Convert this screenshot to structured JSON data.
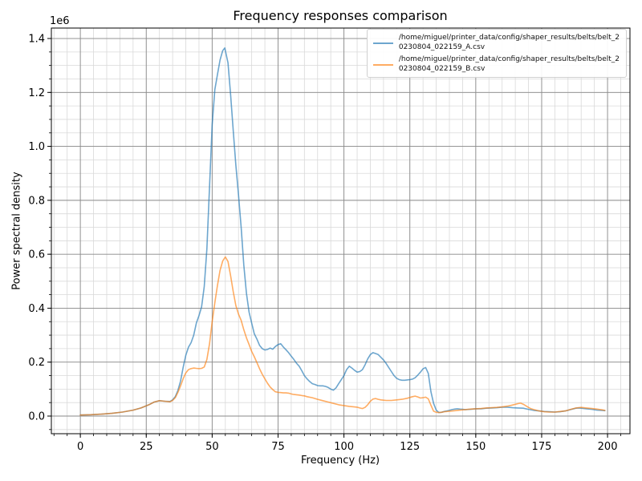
{
  "title": "Frequency responses comparison",
  "axes": {
    "xlabel": "Frequency (Hz)",
    "ylabel": "Power spectral density",
    "offset_text": "1e6"
  },
  "legend": {
    "position": "upper right",
    "items": [
      {
        "line1": "/home/miguel/printer_data/config/shaper_results/belts/belt_2",
        "line2": "0230804_022159_A.csv"
      },
      {
        "line1": "/home/miguel/printer_data/config/shaper_results/belts/belt_2",
        "line2": "0230804_022159_B.csv"
      }
    ]
  },
  "chart_data": {
    "type": "line",
    "title": "Frequency responses comparison",
    "xlabel": "Frequency (Hz)",
    "ylabel": "Power spectral density",
    "y_scale": "1e6",
    "xlim": [
      -11,
      208.5
    ],
    "ylim": [
      -0.0654,
      1.4387
    ],
    "x_ticks": [
      0,
      25,
      50,
      75,
      100,
      125,
      150,
      175,
      200
    ],
    "x_tick_labels": [
      "0",
      "25",
      "50",
      "75",
      "100",
      "125",
      "150",
      "175",
      "200"
    ],
    "y_ticks": [
      0,
      0.2,
      0.4,
      0.6,
      0.8,
      1.0,
      1.2,
      1.4
    ],
    "y_tick_labels": [
      "0.0",
      "0.2",
      "0.4",
      "0.6",
      "0.8",
      "1.0",
      "1.2",
      "1.4"
    ],
    "x_minor_step": 5,
    "y_minor_step": 0.05,
    "grid": "both",
    "grid_major_color": "#8a8a8a",
    "grid_minor_color": "#d9d9d9",
    "legend_position": "upper right",
    "series": [
      {
        "name": "/home/miguel/printer_data/config/shaper_results/belts/belt_20230804_022159_A.csv",
        "color": "#1f77b4",
        "opacity": 0.65,
        "points": [
          [
            0,
            0.004
          ],
          [
            4,
            0.005
          ],
          [
            8,
            0.007
          ],
          [
            12,
            0.01
          ],
          [
            16,
            0.015
          ],
          [
            20,
            0.022
          ],
          [
            23,
            0.03
          ],
          [
            26,
            0.042
          ],
          [
            28,
            0.052
          ],
          [
            30,
            0.057
          ],
          [
            32,
            0.055
          ],
          [
            34,
            0.054
          ],
          [
            35,
            0.06
          ],
          [
            36,
            0.072
          ],
          [
            37,
            0.095
          ],
          [
            38,
            0.13
          ],
          [
            39,
            0.18
          ],
          [
            40,
            0.225
          ],
          [
            41,
            0.255
          ],
          [
            42,
            0.272
          ],
          [
            43,
            0.3
          ],
          [
            44,
            0.345
          ],
          [
            45,
            0.372
          ],
          [
            46,
            0.405
          ],
          [
            47,
            0.48
          ],
          [
            48,
            0.62
          ],
          [
            49,
            0.85
          ],
          [
            50,
            1.08
          ],
          [
            51,
            1.21
          ],
          [
            52,
            1.265
          ],
          [
            53,
            1.32
          ],
          [
            54,
            1.355
          ],
          [
            54.8,
            1.365
          ],
          [
            56,
            1.31
          ],
          [
            57,
            1.19
          ],
          [
            58,
            1.06
          ],
          [
            59,
            0.93
          ],
          [
            60,
            0.82
          ],
          [
            61,
            0.7
          ],
          [
            62,
            0.56
          ],
          [
            63,
            0.455
          ],
          [
            64,
            0.385
          ],
          [
            65,
            0.345
          ],
          [
            66,
            0.305
          ],
          [
            67,
            0.285
          ],
          [
            68,
            0.262
          ],
          [
            69,
            0.25
          ],
          [
            70,
            0.245
          ],
          [
            71,
            0.247
          ],
          [
            72,
            0.252
          ],
          [
            73,
            0.248
          ],
          [
            74,
            0.258
          ],
          [
            75,
            0.265
          ],
          [
            76,
            0.268
          ],
          [
            77,
            0.256
          ],
          [
            78,
            0.246
          ],
          [
            79,
            0.235
          ],
          [
            80,
            0.222
          ],
          [
            81,
            0.21
          ],
          [
            82,
            0.196
          ],
          [
            83,
            0.185
          ],
          [
            84,
            0.168
          ],
          [
            85,
            0.15
          ],
          [
            86,
            0.138
          ],
          [
            87,
            0.128
          ],
          [
            88,
            0.12
          ],
          [
            89,
            0.117
          ],
          [
            90,
            0.113
          ],
          [
            91,
            0.112
          ],
          [
            92,
            0.112
          ],
          [
            93,
            0.11
          ],
          [
            94,
            0.106
          ],
          [
            95,
            0.1
          ],
          [
            96,
            0.096
          ],
          [
            97,
            0.105
          ],
          [
            98,
            0.12
          ],
          [
            99,
            0.135
          ],
          [
            100,
            0.15
          ],
          [
            101,
            0.172
          ],
          [
            102,
            0.185
          ],
          [
            103,
            0.178
          ],
          [
            104,
            0.17
          ],
          [
            105,
            0.163
          ],
          [
            106,
            0.165
          ],
          [
            107,
            0.172
          ],
          [
            108,
            0.19
          ],
          [
            109,
            0.212
          ],
          [
            110,
            0.228
          ],
          [
            111,
            0.235
          ],
          [
            112,
            0.232
          ],
          [
            113,
            0.228
          ],
          [
            114,
            0.218
          ],
          [
            115,
            0.208
          ],
          [
            116,
            0.195
          ],
          [
            117,
            0.18
          ],
          [
            118,
            0.165
          ],
          [
            119,
            0.15
          ],
          [
            120,
            0.14
          ],
          [
            121,
            0.135
          ],
          [
            122,
            0.133
          ],
          [
            123,
            0.133
          ],
          [
            124,
            0.134
          ],
          [
            125,
            0.135
          ],
          [
            126,
            0.137
          ],
          [
            127,
            0.142
          ],
          [
            128,
            0.152
          ],
          [
            129,
            0.163
          ],
          [
            130,
            0.175
          ],
          [
            131,
            0.18
          ],
          [
            132,
            0.158
          ],
          [
            133,
            0.09
          ],
          [
            134,
            0.047
          ],
          [
            135,
            0.022
          ],
          [
            136,
            0.013
          ],
          [
            137,
            0.014
          ],
          [
            138,
            0.017
          ],
          [
            139,
            0.019
          ],
          [
            140,
            0.021
          ],
          [
            141,
            0.024
          ],
          [
            142,
            0.026
          ],
          [
            143,
            0.027
          ],
          [
            144,
            0.026
          ],
          [
            145,
            0.025
          ],
          [
            146,
            0.024
          ],
          [
            148,
            0.025
          ],
          [
            150,
            0.027
          ],
          [
            152,
            0.027
          ],
          [
            154,
            0.029
          ],
          [
            156,
            0.03
          ],
          [
            158,
            0.031
          ],
          [
            160,
            0.033
          ],
          [
            162,
            0.033
          ],
          [
            164,
            0.031
          ],
          [
            166,
            0.03
          ],
          [
            168,
            0.029
          ],
          [
            170,
            0.025
          ],
          [
            172,
            0.021
          ],
          [
            174,
            0.019
          ],
          [
            176,
            0.017
          ],
          [
            178,
            0.016
          ],
          [
            180,
            0.015
          ],
          [
            182,
            0.016
          ],
          [
            184,
            0.019
          ],
          [
            186,
            0.024
          ],
          [
            188,
            0.029
          ],
          [
            189,
            0.03
          ],
          [
            190,
            0.029
          ],
          [
            192,
            0.027
          ],
          [
            194,
            0.025
          ],
          [
            196,
            0.022
          ],
          [
            198,
            0.021
          ],
          [
            199,
            0.02
          ]
        ]
      },
      {
        "name": "/home/miguel/printer_data/config/shaper_results/belts/belt_20230804_022159_B.csv",
        "color": "#ff7f0e",
        "opacity": 0.65,
        "points": [
          [
            0,
            0.004
          ],
          [
            4,
            0.005
          ],
          [
            8,
            0.007
          ],
          [
            12,
            0.01
          ],
          [
            16,
            0.015
          ],
          [
            20,
            0.022
          ],
          [
            23,
            0.03
          ],
          [
            26,
            0.042
          ],
          [
            28,
            0.052
          ],
          [
            30,
            0.057
          ],
          [
            32,
            0.055
          ],
          [
            34,
            0.053
          ],
          [
            35,
            0.058
          ],
          [
            36,
            0.068
          ],
          [
            37,
            0.088
          ],
          [
            38,
            0.112
          ],
          [
            39,
            0.138
          ],
          [
            40,
            0.16
          ],
          [
            41,
            0.172
          ],
          [
            42,
            0.176
          ],
          [
            43,
            0.178
          ],
          [
            44,
            0.177
          ],
          [
            45,
            0.176
          ],
          [
            46,
            0.177
          ],
          [
            47,
            0.182
          ],
          [
            48,
            0.21
          ],
          [
            49,
            0.268
          ],
          [
            50,
            0.35
          ],
          [
            51,
            0.42
          ],
          [
            52,
            0.483
          ],
          [
            53,
            0.54
          ],
          [
            54,
            0.575
          ],
          [
            55,
            0.59
          ],
          [
            56,
            0.573
          ],
          [
            57,
            0.52
          ],
          [
            58,
            0.462
          ],
          [
            59,
            0.41
          ],
          [
            60,
            0.378
          ],
          [
            61,
            0.355
          ],
          [
            62,
            0.32
          ],
          [
            63,
            0.29
          ],
          [
            64,
            0.265
          ],
          [
            65,
            0.24
          ],
          [
            66,
            0.22
          ],
          [
            67,
            0.198
          ],
          [
            68,
            0.175
          ],
          [
            69,
            0.155
          ],
          [
            70,
            0.138
          ],
          [
            71,
            0.122
          ],
          [
            72,
            0.108
          ],
          [
            73,
            0.098
          ],
          [
            74,
            0.09
          ],
          [
            75,
            0.088
          ],
          [
            76,
            0.087
          ],
          [
            77,
            0.086
          ],
          [
            78,
            0.086
          ],
          [
            79,
            0.085
          ],
          [
            80,
            0.082
          ],
          [
            81,
            0.08
          ],
          [
            82,
            0.079
          ],
          [
            83,
            0.078
          ],
          [
            84,
            0.076
          ],
          [
            85,
            0.075
          ],
          [
            86,
            0.072
          ],
          [
            88,
            0.068
          ],
          [
            90,
            0.062
          ],
          [
            92,
            0.057
          ],
          [
            94,
            0.052
          ],
          [
            96,
            0.047
          ],
          [
            98,
            0.042
          ],
          [
            100,
            0.039
          ],
          [
            102,
            0.036
          ],
          [
            104,
            0.034
          ],
          [
            105,
            0.033
          ],
          [
            106,
            0.03
          ],
          [
            107,
            0.028
          ],
          [
            108,
            0.032
          ],
          [
            109,
            0.042
          ],
          [
            110,
            0.055
          ],
          [
            111,
            0.063
          ],
          [
            112,
            0.065
          ],
          [
            113,
            0.062
          ],
          [
            114,
            0.06
          ],
          [
            115,
            0.059
          ],
          [
            116,
            0.058
          ],
          [
            118,
            0.058
          ],
          [
            120,
            0.06
          ],
          [
            122,
            0.062
          ],
          [
            124,
            0.066
          ],
          [
            126,
            0.072
          ],
          [
            127,
            0.074
          ],
          [
            128,
            0.071
          ],
          [
            129,
            0.067
          ],
          [
            130,
            0.068
          ],
          [
            131,
            0.07
          ],
          [
            132,
            0.064
          ],
          [
            133,
            0.04
          ],
          [
            134,
            0.018
          ],
          [
            135,
            0.014
          ],
          [
            136,
            0.013
          ],
          [
            137,
            0.014
          ],
          [
            138,
            0.016
          ],
          [
            139,
            0.017
          ],
          [
            140,
            0.018
          ],
          [
            142,
            0.02
          ],
          [
            144,
            0.022
          ],
          [
            146,
            0.024
          ],
          [
            148,
            0.026
          ],
          [
            150,
            0.027
          ],
          [
            152,
            0.028
          ],
          [
            154,
            0.03
          ],
          [
            156,
            0.031
          ],
          [
            158,
            0.032
          ],
          [
            160,
            0.034
          ],
          [
            162,
            0.037
          ],
          [
            164,
            0.041
          ],
          [
            166,
            0.046
          ],
          [
            167,
            0.048
          ],
          [
            168,
            0.044
          ],
          [
            169,
            0.038
          ],
          [
            170,
            0.032
          ],
          [
            171,
            0.027
          ],
          [
            172,
            0.024
          ],
          [
            174,
            0.019
          ],
          [
            176,
            0.016
          ],
          [
            178,
            0.015
          ],
          [
            180,
            0.015
          ],
          [
            182,
            0.017
          ],
          [
            184,
            0.019
          ],
          [
            186,
            0.025
          ],
          [
            188,
            0.03
          ],
          [
            190,
            0.032
          ],
          [
            192,
            0.03
          ],
          [
            194,
            0.028
          ],
          [
            196,
            0.026
          ],
          [
            198,
            0.023
          ],
          [
            199,
            0.021
          ]
        ]
      }
    ]
  }
}
